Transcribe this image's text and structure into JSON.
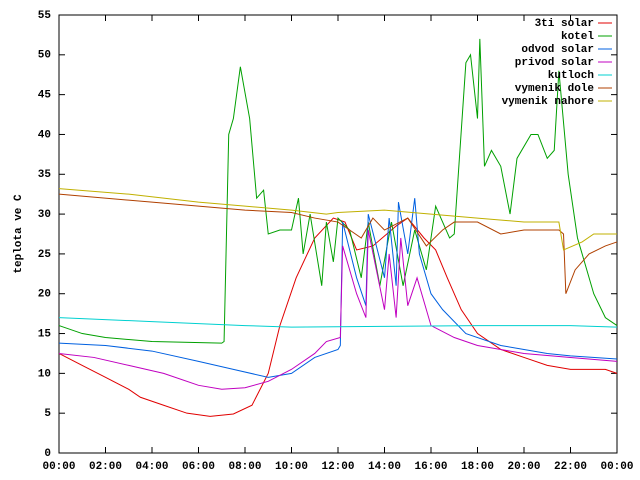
{
  "chart_data": {
    "type": "line",
    "ylabel": "teplota ve C",
    "xlim": [
      0,
      24
    ],
    "ylim": [
      0,
      55
    ],
    "xticks": [
      {
        "value": 0,
        "label": "00:00"
      },
      {
        "value": 2,
        "label": "02:00"
      },
      {
        "value": 4,
        "label": "04:00"
      },
      {
        "value": 6,
        "label": "06:00"
      },
      {
        "value": 8,
        "label": "08:00"
      },
      {
        "value": 10,
        "label": "10:00"
      },
      {
        "value": 12,
        "label": "12:00"
      },
      {
        "value": 14,
        "label": "14:00"
      },
      {
        "value": 16,
        "label": "16:00"
      },
      {
        "value": 18,
        "label": "18:00"
      },
      {
        "value": 20,
        "label": "20:00"
      },
      {
        "value": 22,
        "label": "22:00"
      },
      {
        "value": 24,
        "label": "00:00"
      }
    ],
    "yticks": [
      0,
      5,
      10,
      15,
      20,
      25,
      30,
      35,
      40,
      45,
      50,
      55
    ],
    "legend": "top-right",
    "series": [
      {
        "name": "3ti solar",
        "color": "#e00000",
        "x": [
          0,
          1,
          2,
          3,
          3.5,
          4.5,
          5.5,
          6.5,
          7.5,
          8.3,
          9,
          9.5,
          10.2,
          11,
          11.8,
          12.3,
          12.8,
          13.5,
          14.5,
          15,
          15.7,
          16.2,
          16.7,
          17.3,
          18,
          19,
          20,
          21,
          22,
          23.5,
          24
        ],
        "values": [
          12.5,
          11,
          9.5,
          8,
          7,
          6,
          5,
          4.6,
          4.9,
          6,
          10,
          16,
          22,
          27,
          29.5,
          29,
          25.5,
          26,
          28.5,
          29.5,
          27,
          25.5,
          22,
          18,
          15,
          13,
          12,
          11,
          10.5,
          10.5,
          10
        ]
      },
      {
        "name": "kotel",
        "color": "#00a000",
        "x": [
          0,
          1,
          2,
          4,
          7,
          7.1,
          7.3,
          7.5,
          7.8,
          8.2,
          8.5,
          8.8,
          9,
          9.5,
          10,
          10.3,
          10.5,
          10.8,
          11.3,
          11.5,
          11.8,
          12,
          12.5,
          13,
          13.3,
          13.8,
          14.3,
          14.8,
          15.3,
          15.8,
          16.2,
          16.8,
          17,
          17.5,
          17.7,
          18,
          18.1,
          18.3,
          18.6,
          19,
          19.4,
          19.7,
          20.3,
          20.6,
          21,
          21.3,
          21.5,
          21.9,
          22.3,
          23,
          23.5,
          24
        ],
        "values": [
          16,
          15,
          14.5,
          14,
          13.8,
          14,
          40,
          42,
          48.5,
          42,
          32,
          33,
          27.5,
          28,
          28,
          32,
          25,
          30,
          21,
          29,
          24,
          29.5,
          28,
          22,
          29,
          21,
          29,
          21,
          28,
          23,
          31,
          27,
          27.5,
          49,
          50,
          42,
          52,
          36,
          38,
          36,
          30,
          37,
          40,
          40,
          37,
          38,
          48,
          35,
          27,
          20,
          17,
          16
        ]
      },
      {
        "name": "odvod solar",
        "color": "#0060e0",
        "x": [
          0,
          2,
          4,
          6,
          7.5,
          9,
          10,
          11,
          12,
          12.1,
          12.2,
          12.8,
          13.2,
          13.3,
          14,
          14.2,
          14.5,
          14.6,
          15,
          15.3,
          15.5,
          16,
          16.5,
          17.5,
          19,
          20,
          21,
          22,
          24
        ],
        "values": [
          13.8,
          13.5,
          12.8,
          11.5,
          10.5,
          9.5,
          10,
          12,
          13,
          13.5,
          29,
          22,
          18.5,
          30,
          22,
          29.5,
          21,
          31.5,
          25,
          32,
          25,
          20,
          18,
          15,
          13.5,
          13,
          12.5,
          12.2,
          11.8
        ]
      },
      {
        "name": "privod solar",
        "color": "#c000c0",
        "x": [
          0,
          1.5,
          3,
          4.5,
          6,
          7,
          8,
          9,
          10,
          11,
          11.5,
          12.1,
          12.2,
          12.8,
          13.2,
          13.3,
          14,
          14.2,
          14.5,
          14.7,
          15,
          15.4,
          16,
          17,
          18,
          19,
          20,
          22,
          24
        ],
        "values": [
          12.5,
          12,
          11,
          10,
          8.5,
          8,
          8.2,
          9,
          10.5,
          12.5,
          14,
          14.5,
          26,
          20,
          17,
          28,
          18,
          25,
          17,
          27,
          18.5,
          22,
          16,
          14.5,
          13.5,
          13,
          12.5,
          12,
          11.5
        ]
      },
      {
        "name": "kutloch",
        "color": "#00d0d0",
        "x": [
          0,
          4,
          8,
          10,
          14,
          18,
          22,
          24
        ],
        "values": [
          17,
          16.5,
          16,
          15.8,
          15.9,
          16,
          16,
          15.8
        ]
      },
      {
        "name": "vymenik dole",
        "color": "#b04000",
        "x": [
          0,
          4,
          8,
          10,
          11,
          12,
          12.5,
          13,
          13.5,
          14,
          15,
          15.8,
          16.5,
          17,
          18,
          19,
          20,
          21.5,
          21.7,
          21.8,
          22.2,
          22.8,
          23.5,
          24
        ],
        "values": [
          32.5,
          31.5,
          30.5,
          30.2,
          29.5,
          29,
          28,
          27,
          29.5,
          28,
          29.5,
          26,
          28,
          29,
          29,
          27.5,
          28,
          28,
          27.5,
          20,
          23,
          25,
          26,
          26.5
        ]
      },
      {
        "name": "vymenik nahore",
        "color": "#c0b000",
        "x": [
          0,
          3,
          6,
          8,
          10,
          11.5,
          12,
          14,
          16,
          18,
          20,
          21.5,
          21.7,
          22.5,
          23,
          24
        ],
        "values": [
          33.2,
          32.5,
          31.5,
          31,
          30.5,
          30,
          30.2,
          30.5,
          30,
          29.5,
          29,
          29,
          25.5,
          26.5,
          27.5,
          27.5
        ]
      }
    ]
  }
}
